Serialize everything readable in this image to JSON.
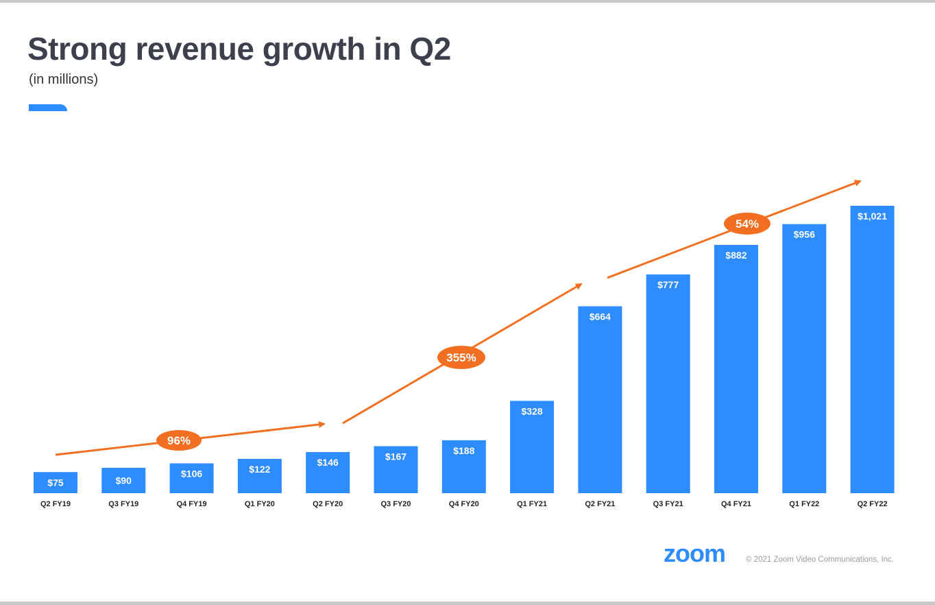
{
  "slide": {
    "title": "Strong revenue growth in Q2",
    "subtitle": "(in millions)"
  },
  "footer": {
    "logo": "zoom",
    "copyright": "© 2021 Zoom Video Communications, Inc."
  },
  "colors": {
    "bar": "#2d8cff",
    "growth": "#f26f21",
    "title": "#3c3f4c",
    "label_text": "#ffffff",
    "tick_text": "#222222"
  },
  "chart_data": {
    "type": "bar",
    "title": "Strong revenue growth in Q2",
    "ylabel": "(in millions)",
    "xlabel": "",
    "categories": [
      "Q2 FY19",
      "Q3 FY19",
      "Q4 FY19",
      "Q1 FY20",
      "Q2 FY20",
      "Q3 FY20",
      "Q4 FY20",
      "Q1 FY21",
      "Q2 FY21",
      "Q3 FY21",
      "Q4 FY21",
      "Q1 FY22",
      "Q2 FY22"
    ],
    "values": [
      75,
      90,
      106,
      122,
      146,
      167,
      188,
      328,
      664,
      777,
      882,
      956,
      1021
    ],
    "value_labels": [
      "$75",
      "$90",
      "$106",
      "$122",
      "$146",
      "$167",
      "$188",
      "$328",
      "$664",
      "$777",
      "$882",
      "$956",
      "$1,021"
    ],
    "ylim": [
      0,
      1100
    ],
    "grid": false,
    "annotations": [
      {
        "label": "96%",
        "from": "Q2 FY19",
        "to": "Q2 FY20"
      },
      {
        "label": "355%",
        "from": "Q2 FY20",
        "to": "Q2 FY21"
      },
      {
        "label": "54%",
        "from": "Q2 FY21",
        "to": "Q2 FY22"
      }
    ]
  }
}
